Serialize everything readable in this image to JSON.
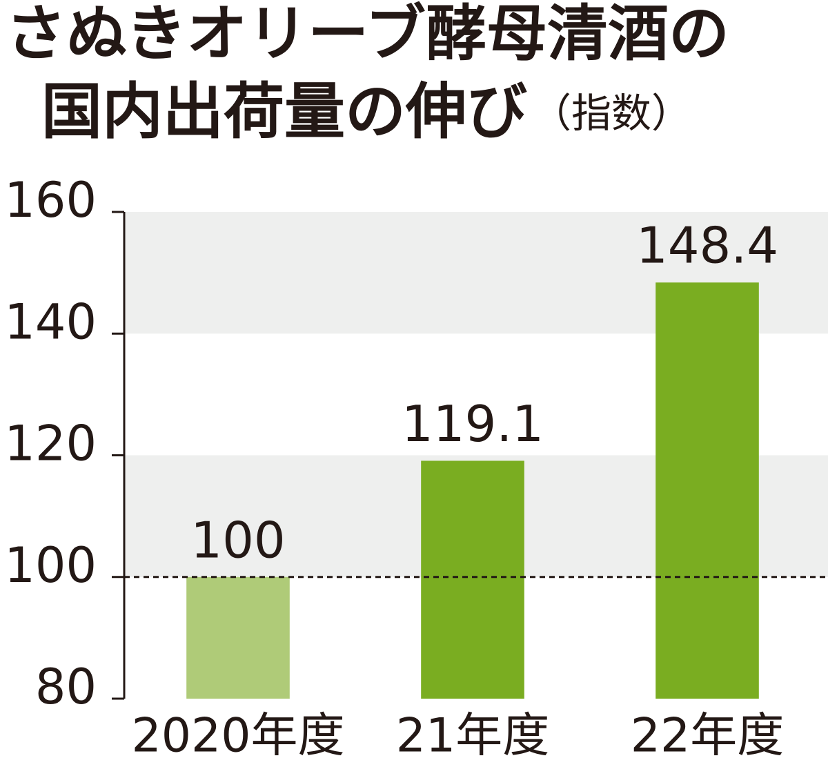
{
  "chart_data": {
    "type": "bar",
    "title": [
      "さぬきオリーブ酵母清酒の",
      "国内出荷量の伸び"
    ],
    "subtitle": "（指数）",
    "categories": [
      "2020年度",
      "21年度",
      "22年度"
    ],
    "values": [
      100,
      119.1,
      148.4
    ],
    "colors": [
      "#afcb78",
      "#7aad21",
      "#7aad21"
    ],
    "ylim": [
      80,
      160
    ],
    "yticks": [
      80,
      100,
      120,
      140,
      160
    ],
    "band_color": "#eeefee",
    "reference_line": 100
  }
}
